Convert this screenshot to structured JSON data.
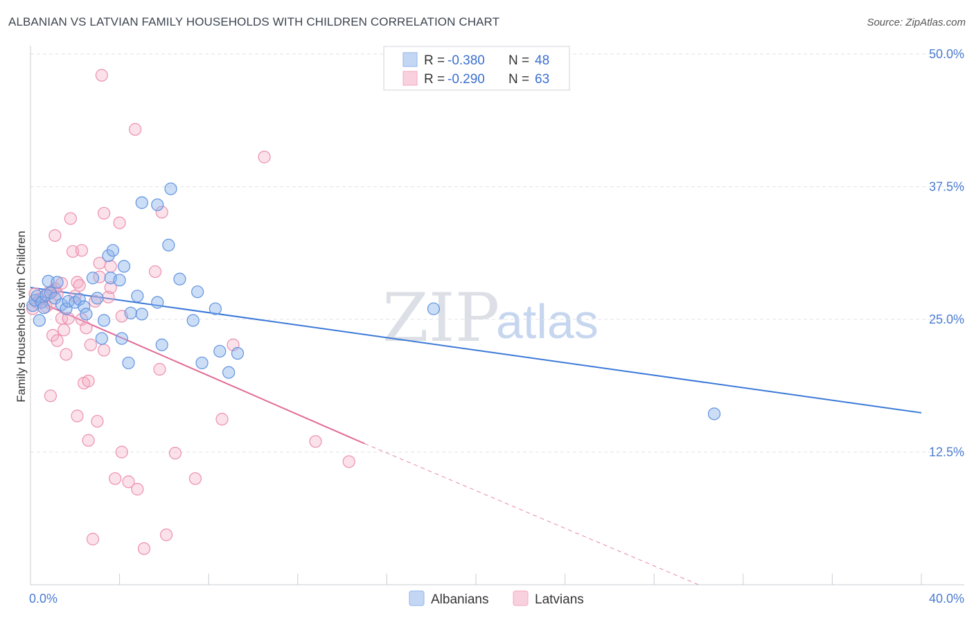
{
  "header": {
    "title": "ALBANIAN VS LATVIAN FAMILY HOUSEHOLDS WITH CHILDREN CORRELATION CHART",
    "source": "Source: ZipAtlas.com"
  },
  "legend": {
    "rows": [
      {
        "r_label": "R = ",
        "r_value": "-0.380",
        "n_label": "N = ",
        "n_value": "48",
        "color": "#8fb4ea"
      },
      {
        "r_label": "R = ",
        "r_value": "-0.290",
        "n_label": "N = ",
        "n_value": "63",
        "color": "#f3a9c0"
      }
    ]
  },
  "bottom_legend": {
    "items": [
      {
        "label": "Albanians",
        "color": "#8fb4ea"
      },
      {
        "label": "Latvians",
        "color": "#f3a9c0"
      }
    ]
  },
  "watermark": {
    "zip": "ZIP",
    "atlas": "atlas"
  },
  "chart_data": {
    "type": "scatter",
    "title": "ALBANIAN VS LATVIAN FAMILY HOUSEHOLDS WITH CHILDREN CORRELATION CHART",
    "xlabel": "",
    "ylabel": "Family Households with Children",
    "xlim": [
      0,
      40
    ],
    "ylim": [
      0,
      50
    ],
    "x_tick_labels": [
      "0.0%",
      "40.0%"
    ],
    "y_ticks": [
      12.5,
      25.0,
      37.5,
      50.0
    ],
    "y_tick_labels": [
      "12.5%",
      "25.0%",
      "37.5%",
      "50.0%"
    ],
    "grid": true,
    "series": [
      {
        "name": "Albanians",
        "color": "#3a78d8",
        "fill": "rgba(143,180,234,0.45)",
        "r": -0.38,
        "n": 48,
        "trend": {
          "x0": 0.0,
          "y0": 28.0,
          "x1": 40.0,
          "y1": 16.2
        },
        "points": [
          [
            0.1,
            26.3
          ],
          [
            0.2,
            26.8
          ],
          [
            0.3,
            27.2
          ],
          [
            0.4,
            24.9
          ],
          [
            0.5,
            26.6
          ],
          [
            0.6,
            26.1
          ],
          [
            0.7,
            27.3
          ],
          [
            0.8,
            28.6
          ],
          [
            0.9,
            27.5
          ],
          [
            1.1,
            27.0
          ],
          [
            1.2,
            28.5
          ],
          [
            1.4,
            26.4
          ],
          [
            1.6,
            26.0
          ],
          [
            1.7,
            26.7
          ],
          [
            2.0,
            26.6
          ],
          [
            2.2,
            26.9
          ],
          [
            2.4,
            26.2
          ],
          [
            2.5,
            25.5
          ],
          [
            2.8,
            28.9
          ],
          [
            3.0,
            27.0
          ],
          [
            3.2,
            23.2
          ],
          [
            3.3,
            24.9
          ],
          [
            3.5,
            31.0
          ],
          [
            3.6,
            28.9
          ],
          [
            3.7,
            31.5
          ],
          [
            4.0,
            28.7
          ],
          [
            4.1,
            23.2
          ],
          [
            4.2,
            30.0
          ],
          [
            4.4,
            20.9
          ],
          [
            4.5,
            25.6
          ],
          [
            4.8,
            27.2
          ],
          [
            5.0,
            25.5
          ],
          [
            5.0,
            36.0
          ],
          [
            5.7,
            35.8
          ],
          [
            5.7,
            26.6
          ],
          [
            5.9,
            22.6
          ],
          [
            6.2,
            32.0
          ],
          [
            6.3,
            37.3
          ],
          [
            6.7,
            28.8
          ],
          [
            7.3,
            24.9
          ],
          [
            7.5,
            27.6
          ],
          [
            7.7,
            20.9
          ],
          [
            8.3,
            26.0
          ],
          [
            8.5,
            22.0
          ],
          [
            8.9,
            20.0
          ],
          [
            9.3,
            21.8
          ],
          [
            18.1,
            26.0
          ],
          [
            30.7,
            16.1
          ]
        ]
      },
      {
        "name": "Latvians",
        "color": "#e26a96",
        "fill": "rgba(243,169,192,0.35)",
        "r": -0.29,
        "n": 63,
        "trend": {
          "x0": 0.0,
          "y0": 27.0,
          "x1": 15.0,
          "y1": 13.3
        },
        "trend_dashed_to": {
          "x": 30.0,
          "y": 0.0
        },
        "points": [
          [
            0.1,
            26.0
          ],
          [
            0.2,
            27.4
          ],
          [
            0.3,
            26.6
          ],
          [
            0.4,
            26.9
          ],
          [
            0.6,
            27.1
          ],
          [
            0.7,
            26.2
          ],
          [
            0.8,
            27.5
          ],
          [
            0.9,
            26.5
          ],
          [
            1.0,
            27.7
          ],
          [
            1.1,
            27.9
          ],
          [
            1.2,
            27.4
          ],
          [
            0.9,
            17.8
          ],
          [
            1.0,
            23.5
          ],
          [
            1.1,
            32.9
          ],
          [
            1.2,
            23.0
          ],
          [
            1.4,
            28.4
          ],
          [
            1.4,
            25.1
          ],
          [
            1.5,
            24.0
          ],
          [
            1.6,
            21.7
          ],
          [
            1.7,
            25.1
          ],
          [
            1.8,
            34.5
          ],
          [
            1.9,
            31.4
          ],
          [
            2.0,
            27.2
          ],
          [
            2.1,
            28.5
          ],
          [
            2.1,
            15.9
          ],
          [
            2.2,
            28.2
          ],
          [
            2.3,
            25.0
          ],
          [
            2.3,
            31.5
          ],
          [
            2.4,
            19.0
          ],
          [
            2.5,
            24.2
          ],
          [
            2.6,
            19.2
          ],
          [
            2.6,
            13.6
          ],
          [
            2.7,
            22.6
          ],
          [
            2.8,
            4.3
          ],
          [
            3.0,
            15.4
          ],
          [
            3.1,
            29.0
          ],
          [
            3.1,
            30.3
          ],
          [
            3.2,
            48.0
          ],
          [
            3.3,
            22.1
          ],
          [
            3.3,
            35.0
          ],
          [
            3.5,
            27.1
          ],
          [
            3.6,
            28.0
          ],
          [
            3.8,
            10.0
          ],
          [
            4.0,
            34.1
          ],
          [
            4.1,
            12.5
          ],
          [
            4.1,
            25.3
          ],
          [
            4.4,
            9.7
          ],
          [
            4.7,
            42.9
          ],
          [
            4.8,
            9.0
          ],
          [
            5.1,
            3.4
          ],
          [
            5.6,
            29.5
          ],
          [
            5.8,
            20.3
          ],
          [
            5.9,
            35.1
          ],
          [
            6.1,
            4.7
          ],
          [
            6.5,
            12.4
          ],
          [
            7.4,
            10.0
          ],
          [
            8.6,
            15.6
          ],
          [
            9.1,
            22.6
          ],
          [
            10.5,
            40.3
          ],
          [
            12.8,
            13.5
          ],
          [
            14.3,
            11.6
          ],
          [
            3.6,
            30.0
          ],
          [
            2.9,
            26.7
          ]
        ]
      }
    ]
  }
}
